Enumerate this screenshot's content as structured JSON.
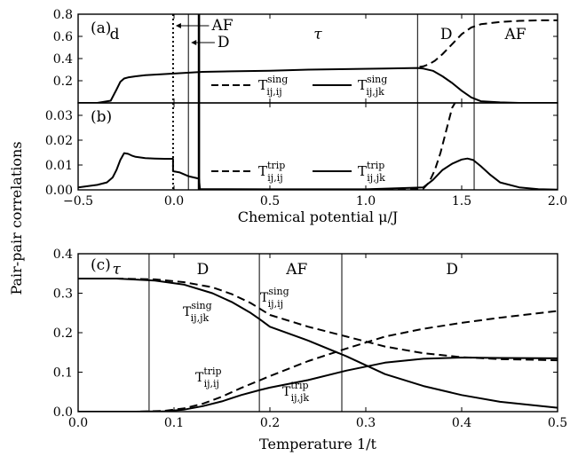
{
  "figure": {
    "y_axis_label": "Pair-pair correlations",
    "panel_a_label": "(a)",
    "panel_b_label": "(b)",
    "panel_c_label": "(c)"
  },
  "chart_data": [
    {
      "type": "line",
      "panel": "(a)",
      "xlabel": "",
      "ylabel": "",
      "xlim": [
        -0.5,
        2.0
      ],
      "ylim": [
        0.0,
        0.8
      ],
      "yticks": [
        "0.0",
        "0.2",
        "0.4",
        "0.6",
        "0.8"
      ],
      "grid": false,
      "legend_position": "center-right",
      "region_labels": [
        {
          "text": "d",
          "x": -0.31
        },
        {
          "text": "τ",
          "x": 0.75
        },
        {
          "text": "D",
          "x": 1.42
        },
        {
          "text": "AF",
          "x": 1.78
        }
      ],
      "arrow_labels": [
        {
          "text": "AF",
          "x": 0.09
        },
        {
          "text": "D",
          "x": 0.12
        }
      ],
      "boundaries": [
        {
          "x": -0.005,
          "style": "dotted"
        },
        {
          "x": 0.075,
          "style": "solid-thin"
        },
        {
          "x": 0.13,
          "style": "solid-thick"
        },
        {
          "x": 1.27,
          "style": "solid-thin"
        },
        {
          "x": 1.565,
          "style": "solid-thin"
        }
      ],
      "series": [
        {
          "name": "T^sing_{ij,ij}",
          "style": "dashed",
          "x": [
            1.28,
            1.3,
            1.33,
            1.36,
            1.4,
            1.45,
            1.5,
            1.55,
            1.6,
            1.7,
            1.8,
            1.9,
            2.0
          ],
          "y": [
            0.325,
            0.33,
            0.35,
            0.38,
            0.44,
            0.53,
            0.62,
            0.68,
            0.71,
            0.73,
            0.74,
            0.745,
            0.745
          ]
        },
        {
          "name": "T^sing_{ij,jk}",
          "style": "solid",
          "x": [
            -0.5,
            -0.4,
            -0.33,
            -0.3,
            -0.28,
            -0.26,
            -0.24,
            -0.2,
            -0.15,
            -0.1,
            -0.05,
            0.0,
            0.05,
            0.1,
            0.15,
            0.3,
            0.5,
            0.7,
            0.9,
            1.1,
            1.27,
            1.3,
            1.35,
            1.4,
            1.45,
            1.5,
            1.55,
            1.6,
            1.7,
            1.8,
            2.0
          ],
          "y": [
            0.0,
            0.0,
            0.02,
            0.12,
            0.19,
            0.22,
            0.23,
            0.24,
            0.25,
            0.255,
            0.26,
            0.265,
            0.27,
            0.275,
            0.28,
            0.285,
            0.29,
            0.3,
            0.305,
            0.31,
            0.315,
            0.31,
            0.29,
            0.24,
            0.18,
            0.11,
            0.05,
            0.015,
            0.005,
            0.0,
            0.0
          ]
        }
      ]
    },
    {
      "type": "line",
      "panel": "(b)",
      "xlabel": "Chemical potential μ/J",
      "ylabel": "",
      "xlim": [
        -0.5,
        2.0
      ],
      "ylim": [
        0.0,
        0.035
      ],
      "xticks": [
        "−0.5",
        "0.0",
        "0.5",
        "1.0",
        "1.5",
        "2.0"
      ],
      "yticks": [
        "0.00",
        "0.01",
        "0.02",
        "0.03"
      ],
      "grid": false,
      "legend_position": "center-right",
      "boundaries": [
        {
          "x": -0.005,
          "style": "dotted"
        },
        {
          "x": 0.075,
          "style": "solid-thin"
        },
        {
          "x": 0.13,
          "style": "solid-thick"
        },
        {
          "x": 1.27,
          "style": "solid-thin"
        },
        {
          "x": 1.565,
          "style": "solid-thin"
        }
      ],
      "series": [
        {
          "name": "T^trip_{ij,ij}",
          "style": "dashed",
          "x": [
            0.13,
            0.5,
            1.0,
            1.2,
            1.3,
            1.33,
            1.36,
            1.39,
            1.42,
            1.45,
            1.48
          ],
          "y": [
            0.0,
            0.0,
            0.0,
            0.0,
            0.0005,
            0.003,
            0.008,
            0.015,
            0.024,
            0.033,
            0.037
          ]
        },
        {
          "name": "T^trip_{ij,jk}",
          "style": "solid",
          "x": [
            -0.5,
            -0.4,
            -0.35,
            -0.32,
            -0.3,
            -0.28,
            -0.26,
            -0.24,
            -0.22,
            -0.2,
            -0.15,
            -0.1,
            -0.05,
            -0.005,
            -0.005,
            0.03,
            0.075,
            0.13,
            0.135,
            0.5,
            1.0,
            1.3,
            1.35,
            1.4,
            1.45,
            1.5,
            1.53,
            1.56,
            1.6,
            1.65,
            1.7,
            1.8,
            1.9,
            2.0
          ],
          "y": [
            0.001,
            0.002,
            0.003,
            0.005,
            0.008,
            0.012,
            0.0148,
            0.0145,
            0.0138,
            0.0133,
            0.0128,
            0.0126,
            0.0125,
            0.0125,
            0.0075,
            0.007,
            0.0055,
            0.0045,
            0.0003,
            0.0002,
            0.0002,
            0.001,
            0.004,
            0.008,
            0.0105,
            0.0122,
            0.0126,
            0.012,
            0.0095,
            0.006,
            0.003,
            0.001,
            0.0003,
            0.0001
          ]
        }
      ]
    },
    {
      "type": "line",
      "panel": "(c)",
      "xlabel": "Temperature 1/t",
      "ylabel": "",
      "xlim": [
        0.0,
        0.5
      ],
      "ylim": [
        0.0,
        0.4
      ],
      "xticks": [
        "0.0",
        "0.1",
        "0.2",
        "0.3",
        "0.4",
        "0.5"
      ],
      "yticks": [
        "0.0",
        "0.1",
        "0.2",
        "0.3",
        "0.4"
      ],
      "grid": false,
      "region_labels": [
        {
          "text": "τ",
          "x": 0.04
        },
        {
          "text": "D",
          "x": 0.13
        },
        {
          "text": "AF",
          "x": 0.228
        },
        {
          "text": "D",
          "x": 0.39
        }
      ],
      "boundaries": [
        {
          "x": 0.074,
          "style": "solid-thin"
        },
        {
          "x": 0.189,
          "style": "solid-thin"
        },
        {
          "x": 0.275,
          "style": "solid-thin"
        }
      ],
      "series": [
        {
          "name": "T^sing_{ij,ij}",
          "style": "dashed",
          "x": [
            0.0,
            0.04,
            0.08,
            0.11,
            0.14,
            0.16,
            0.18,
            0.19,
            0.2,
            0.24,
            0.28,
            0.32,
            0.36,
            0.4,
            0.44,
            0.5
          ],
          "y": [
            0.337,
            0.337,
            0.335,
            0.328,
            0.315,
            0.298,
            0.275,
            0.26,
            0.245,
            0.215,
            0.19,
            0.165,
            0.148,
            0.138,
            0.133,
            0.13
          ]
        },
        {
          "name": "T^sing_{ij,jk}",
          "style": "solid",
          "x": [
            0.0,
            0.04,
            0.08,
            0.11,
            0.14,
            0.16,
            0.18,
            0.19,
            0.2,
            0.24,
            0.28,
            0.32,
            0.36,
            0.4,
            0.44,
            0.5
          ],
          "y": [
            0.337,
            0.337,
            0.332,
            0.322,
            0.3,
            0.278,
            0.25,
            0.233,
            0.215,
            0.18,
            0.14,
            0.095,
            0.065,
            0.042,
            0.025,
            0.01
          ]
        },
        {
          "name": "T^trip_{ij,ij}",
          "style": "dashed",
          "x": [
            0.0,
            0.06,
            0.09,
            0.11,
            0.13,
            0.15,
            0.17,
            0.19,
            0.2,
            0.24,
            0.28,
            0.32,
            0.36,
            0.4,
            0.44,
            0.5
          ],
          "y": [
            0.0,
            0.0,
            0.002,
            0.008,
            0.02,
            0.038,
            0.06,
            0.08,
            0.09,
            0.128,
            0.16,
            0.19,
            0.21,
            0.225,
            0.238,
            0.255
          ]
        },
        {
          "name": "T^trip_{ij,jk}",
          "style": "solid",
          "x": [
            0.0,
            0.06,
            0.09,
            0.11,
            0.13,
            0.15,
            0.17,
            0.19,
            0.2,
            0.24,
            0.28,
            0.32,
            0.36,
            0.4,
            0.44,
            0.5
          ],
          "y": [
            0.0,
            0.0,
            0.001,
            0.005,
            0.014,
            0.026,
            0.042,
            0.055,
            0.061,
            0.08,
            0.104,
            0.124,
            0.134,
            0.137,
            0.136,
            0.135
          ]
        }
      ]
    }
  ]
}
